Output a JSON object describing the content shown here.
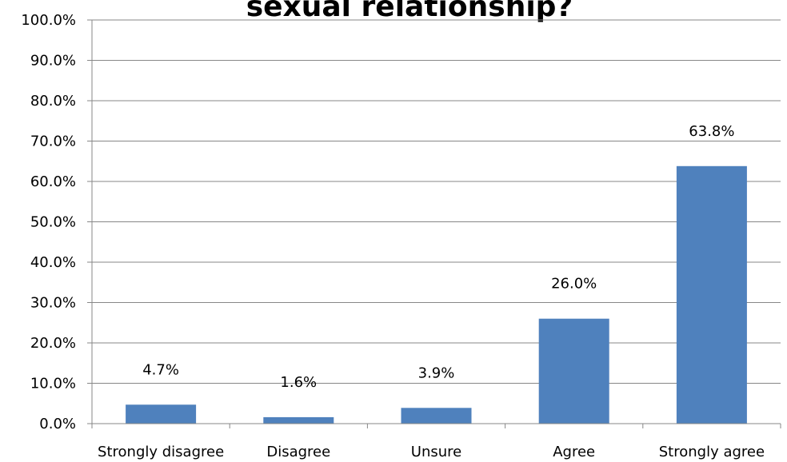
{
  "chart_data": {
    "type": "bar",
    "title": "sexual relationship?",
    "categories": [
      "Strongly disagree",
      "Disagree",
      "Unsure",
      "Agree",
      "Strongly agree"
    ],
    "values": [
      4.7,
      1.6,
      3.9,
      26.0,
      63.8
    ],
    "data_labels": [
      "4.7%",
      "1.6%",
      "3.9%",
      "26.0%",
      "63.8%"
    ],
    "y_ticks": [
      "0.0%",
      "10.0%",
      "20.0%",
      "30.0%",
      "40.0%",
      "50.0%",
      "60.0%",
      "70.0%",
      "80.0%",
      "90.0%",
      "100.0%"
    ],
    "ylim": [
      0,
      100
    ],
    "grid": true,
    "legend": "none",
    "bar_color": "#4F81BD"
  }
}
